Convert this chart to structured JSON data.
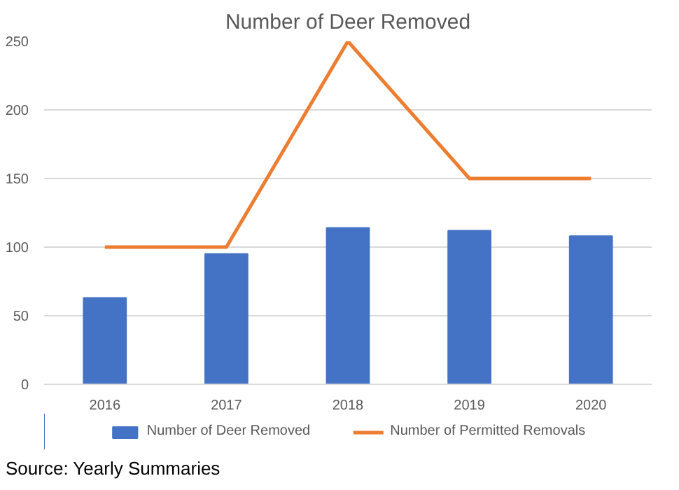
{
  "chart_data": {
    "type": "bar",
    "title": "Number of Deer Removed",
    "categories": [
      "2016",
      "2017",
      "2018",
      "2019",
      "2020"
    ],
    "series": [
      {
        "name": "Number of Deer Removed",
        "color": "#4472c4",
        "values": [
          63,
          95,
          114,
          112,
          108
        ]
      },
      {
        "name": "Number of Permitted Removals",
        "type": "line",
        "color": "#ed7d31",
        "values": [
          100,
          100,
          250,
          150,
          150
        ]
      }
    ],
    "ylim": [
      0,
      250
    ],
    "yticks": [
      0,
      50,
      100,
      150,
      200,
      250
    ],
    "grid": "y",
    "legend": "bottom",
    "marker": "none",
    "line_style": "solid",
    "annotations": [
      "Source: Yearly Summaries"
    ]
  }
}
